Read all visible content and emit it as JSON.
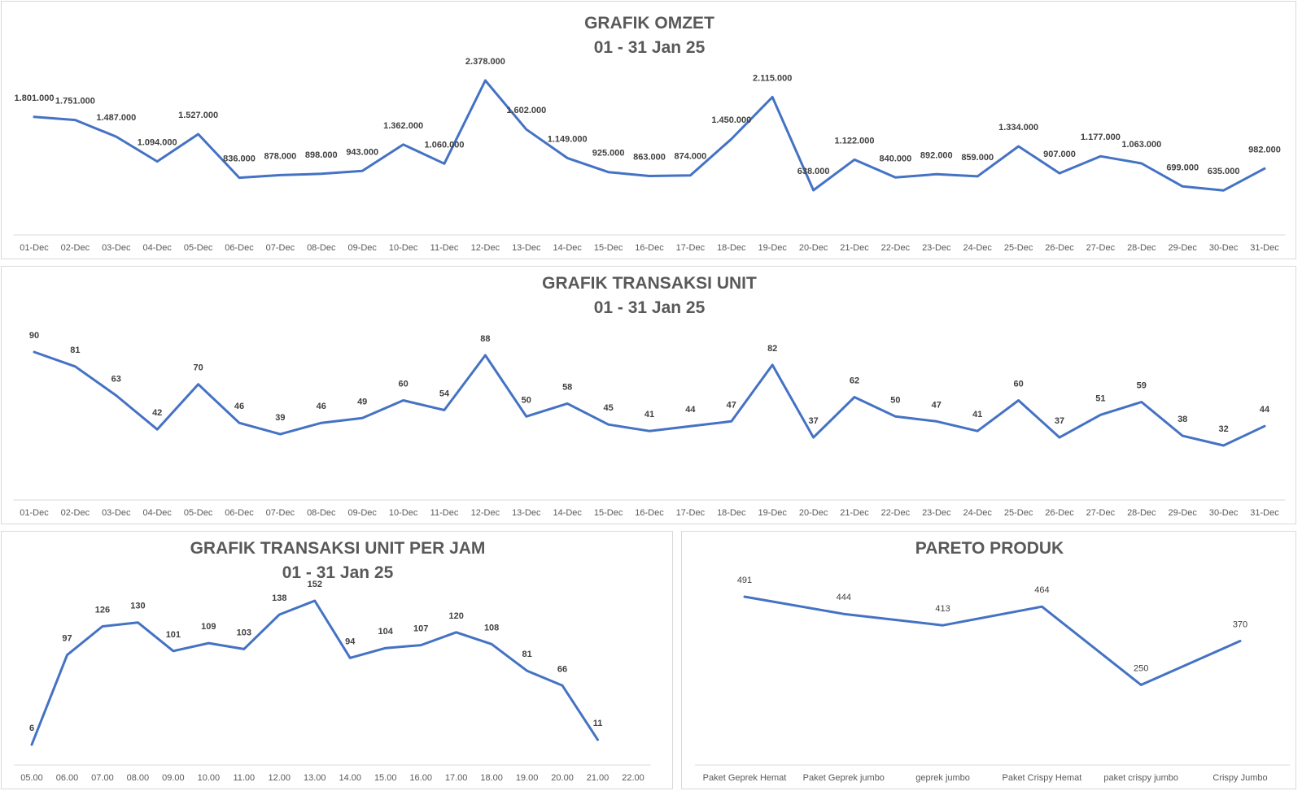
{
  "colors": {
    "series": "#4472c4",
    "axis": "#d9d9d9",
    "title": "#595959",
    "label": "#404040"
  },
  "chart_data": [
    {
      "id": "omzet",
      "type": "line",
      "title": "GRAFIK OMZET",
      "subtitle": "01 - 31 Jan 25",
      "categories": [
        "01-Dec",
        "02-Dec",
        "03-Dec",
        "04-Dec",
        "05-Dec",
        "06-Dec",
        "07-Dec",
        "08-Dec",
        "09-Dec",
        "10-Dec",
        "11-Dec",
        "12-Dec",
        "13-Dec",
        "14-Dec",
        "15-Dec",
        "16-Dec",
        "17-Dec",
        "18-Dec",
        "19-Dec",
        "20-Dec",
        "21-Dec",
        "22-Dec",
        "23-Dec",
        "24-Dec",
        "25-Dec",
        "26-Dec",
        "27-Dec",
        "28-Dec",
        "29-Dec",
        "30-Dec",
        "31-Dec"
      ],
      "values": [
        1801000,
        1751000,
        1487000,
        1094000,
        1527000,
        836000,
        878000,
        898000,
        943000,
        1362000,
        1060000,
        2378000,
        1602000,
        1149000,
        925000,
        863000,
        874000,
        1450000,
        2115000,
        638000,
        1122000,
        840000,
        892000,
        859000,
        1334000,
        907000,
        1177000,
        1063000,
        699000,
        635000,
        982000
      ],
      "labels": [
        "1.801.000",
        "1.751.000",
        "1.487.000",
        "1.094.000",
        "1.527.000",
        "836.000",
        "878.000",
        "898.000",
        "943.000",
        "1.362.000",
        "1.060.000",
        "2.378.000",
        "1.602.000",
        "1.149.000",
        "925.000",
        "863.000",
        "874.000",
        "1.450.000",
        "2.115.000",
        "638.000",
        "1.122.000",
        "840.000",
        "892.000",
        "859.000",
        "1.334.000",
        "907.000",
        "1.177.000",
        "1.063.000",
        "699.000",
        "635.000",
        "982.000"
      ],
      "grid": false,
      "legend": "none"
    },
    {
      "id": "unit",
      "type": "line",
      "title": "GRAFIK TRANSAKSI UNIT",
      "subtitle": "01 - 31 Jan 25",
      "categories": [
        "01-Dec",
        "02-Dec",
        "03-Dec",
        "04-Dec",
        "05-Dec",
        "06-Dec",
        "07-Dec",
        "08-Dec",
        "09-Dec",
        "10-Dec",
        "11-Dec",
        "12-Dec",
        "13-Dec",
        "14-Dec",
        "15-Dec",
        "16-Dec",
        "17-Dec",
        "18-Dec",
        "19-Dec",
        "20-Dec",
        "21-Dec",
        "22-Dec",
        "23-Dec",
        "24-Dec",
        "25-Dec",
        "26-Dec",
        "27-Dec",
        "28-Dec",
        "29-Dec",
        "30-Dec",
        "31-Dec"
      ],
      "values": [
        90,
        81,
        63,
        42,
        70,
        46,
        39,
        46,
        49,
        60,
        54,
        88,
        50,
        58,
        45,
        41,
        44,
        47,
        82,
        37,
        62,
        50,
        47,
        41,
        60,
        37,
        51,
        59,
        38,
        32,
        44
      ],
      "labels": [
        "90",
        "81",
        "63",
        "42",
        "70",
        "46",
        "39",
        "46",
        "49",
        "60",
        "54",
        "88",
        "50",
        "58",
        "45",
        "41",
        "44",
        "47",
        "82",
        "37",
        "62",
        "50",
        "47",
        "41",
        "60",
        "37",
        "51",
        "59",
        "38",
        "32",
        "44"
      ],
      "grid": false,
      "legend": "none"
    },
    {
      "id": "perjam",
      "type": "line",
      "title": "GRAFIK TRANSAKSI UNIT PER JAM",
      "subtitle": "01 - 31 Jan 25",
      "categories": [
        "05.00",
        "06.00",
        "07.00",
        "08.00",
        "09.00",
        "10.00",
        "11.00",
        "12.00",
        "13.00",
        "14.00",
        "15.00",
        "16.00",
        "17.00",
        "18.00",
        "19.00",
        "20.00",
        "21.00",
        "22.00"
      ],
      "values": [
        6,
        97,
        126,
        130,
        101,
        109,
        103,
        138,
        152,
        94,
        104,
        107,
        120,
        108,
        81,
        66,
        11,
        null
      ],
      "labels": [
        "6",
        "97",
        "126",
        "130",
        "101",
        "109",
        "103",
        "138",
        "152",
        "94",
        "104",
        "107",
        "120",
        "108",
        "81",
        "66",
        "11",
        ""
      ],
      "grid": false,
      "legend": "none"
    },
    {
      "id": "pareto",
      "type": "line",
      "title": "PARETO PRODUK",
      "subtitle": "",
      "categories": [
        "Paket Geprek Hemat",
        "Paket Geprek jumbo",
        "geprek jumbo",
        "Paket Crispy Hemat",
        "paket crispy jumbo",
        "Crispy Jumbo"
      ],
      "values": [
        491,
        444,
        413,
        464,
        250,
        370
      ],
      "labels": [
        "491",
        "444",
        "413",
        "464",
        "250",
        "370"
      ],
      "grid": false,
      "legend": "none"
    }
  ]
}
